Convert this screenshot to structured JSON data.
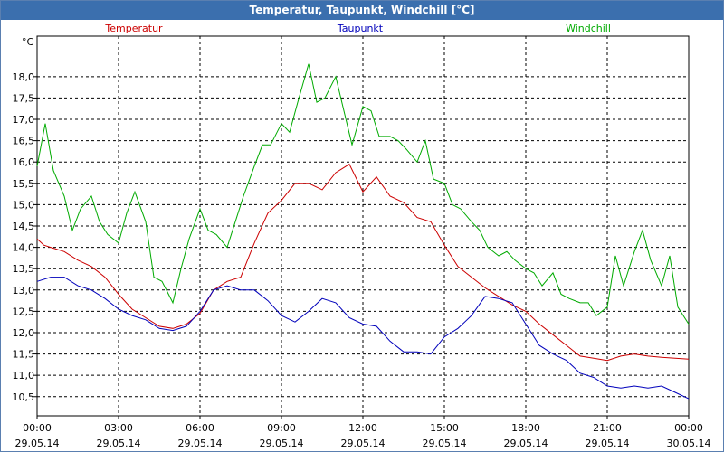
{
  "window_title": "Temperatur, Taupunkt, Windchill [°C]",
  "chart_data": {
    "type": "line",
    "title": "Temperatur, Taupunkt, Windchill [°C]",
    "ylabel": "°C",
    "ylim": [
      10.05,
      18.95
    ],
    "xlim": [
      0,
      24
    ],
    "grid": true,
    "legend_placement": "top",
    "y_ticks": [
      "18,0",
      "17,5",
      "17,0",
      "16,5",
      "16,0",
      "15,5",
      "15,0",
      "14,5",
      "14,0",
      "13,5",
      "13,0",
      "12,5",
      "12,0",
      "11,5",
      "11,0",
      "10,5"
    ],
    "y_tick_values": [
      18.0,
      17.5,
      17.0,
      16.5,
      16.0,
      15.5,
      15.0,
      14.5,
      14.0,
      13.5,
      13.0,
      12.5,
      12.0,
      11.5,
      11.0,
      10.5
    ],
    "x_ticks": [
      {
        "time": "00:00",
        "date": "29.05.14"
      },
      {
        "time": "03:00",
        "date": "29.05.14"
      },
      {
        "time": "06:00",
        "date": "29.05.14"
      },
      {
        "time": "09:00",
        "date": "29.05.14"
      },
      {
        "time": "12:00",
        "date": "29.05.14"
      },
      {
        "time": "15:00",
        "date": "29.05.14"
      },
      {
        "time": "18:00",
        "date": "29.05.14"
      },
      {
        "time": "21:00",
        "date": "29.05.14"
      },
      {
        "time": "00:00",
        "date": "30.05.14"
      }
    ],
    "x_tick_hours": [
      0,
      3,
      6,
      9,
      12,
      15,
      18,
      21,
      24
    ],
    "series": [
      {
        "name": "Temperatur",
        "color": "#cc0000",
        "x": [
          0,
          0.25,
          0.5,
          1,
          1.5,
          2,
          2.5,
          3,
          3.5,
          4,
          4.5,
          5,
          5.5,
          6,
          6.5,
          7,
          7.5,
          8,
          8.5,
          9,
          9.5,
          10,
          10.5,
          11,
          11.5,
          12,
          12.5,
          13,
          13.5,
          14,
          14.5,
          15,
          15.5,
          16,
          16.5,
          17,
          17.5,
          18,
          18.5,
          19,
          19.5,
          20,
          20.5,
          21,
          21.5,
          22,
          22.5,
          23,
          23.5,
          24
        ],
        "values": [
          14.2,
          14.05,
          14.0,
          13.9,
          13.7,
          13.55,
          13.3,
          12.9,
          12.55,
          12.35,
          12.15,
          12.1,
          12.2,
          12.45,
          13.0,
          13.2,
          13.3,
          14.1,
          14.8,
          15.1,
          15.5,
          15.5,
          15.35,
          15.75,
          15.95,
          15.3,
          15.65,
          15.2,
          15.05,
          14.7,
          14.6,
          14.05,
          13.55,
          13.3,
          13.05,
          12.85,
          12.65,
          12.5,
          12.2,
          11.95,
          11.7,
          11.45,
          11.4,
          11.35,
          11.45,
          11.5,
          11.45,
          11.42,
          11.4,
          11.38
        ]
      },
      {
        "name": "Taupunkt",
        "color": "#0000bb",
        "x": [
          0,
          0.5,
          1,
          1.5,
          2,
          2.5,
          3,
          3.5,
          4,
          4.5,
          5,
          5.5,
          6,
          6.5,
          7,
          7.5,
          8,
          8.5,
          9,
          9.5,
          10,
          10.5,
          11,
          11.5,
          12,
          12.5,
          13,
          13.5,
          14,
          14.5,
          15,
          15.5,
          16,
          16.5,
          17,
          17.5,
          18,
          18.5,
          19,
          19.5,
          20,
          20.5,
          21,
          21.5,
          22,
          22.5,
          23,
          23.5,
          24
        ],
        "values": [
          13.2,
          13.3,
          13.3,
          13.1,
          13.0,
          12.8,
          12.55,
          12.4,
          12.3,
          12.1,
          12.05,
          12.15,
          12.5,
          13.0,
          13.1,
          13.0,
          13.0,
          12.75,
          12.4,
          12.25,
          12.5,
          12.8,
          12.7,
          12.35,
          12.2,
          12.15,
          11.8,
          11.55,
          11.55,
          11.5,
          11.9,
          12.1,
          12.4,
          12.85,
          12.8,
          12.7,
          12.2,
          11.7,
          11.5,
          11.35,
          11.05,
          10.95,
          10.75,
          10.7,
          10.75,
          10.7,
          10.75,
          10.6,
          10.45
        ]
      },
      {
        "name": "Windchill",
        "color": "#00aa00",
        "x": [
          0,
          0.3,
          0.6,
          1,
          1.3,
          1.6,
          2,
          2.3,
          2.6,
          3,
          3.3,
          3.6,
          4,
          4.3,
          4.6,
          5,
          5.3,
          5.6,
          6,
          6.3,
          6.6,
          7,
          7.3,
          7.6,
          8,
          8.3,
          8.6,
          9,
          9.3,
          9.6,
          10,
          10.3,
          10.6,
          11,
          11.3,
          11.6,
          12,
          12.3,
          12.6,
          13,
          13.3,
          13.6,
          14,
          14.3,
          14.6,
          15,
          15.3,
          15.6,
          16,
          16.3,
          16.6,
          17,
          17.3,
          17.6,
          18,
          18.3,
          18.6,
          19,
          19.3,
          19.6,
          20,
          20.3,
          20.6,
          21,
          21.3,
          21.6,
          22,
          22.3,
          22.6,
          23,
          23.3,
          23.6,
          24
        ],
        "values": [
          15.9,
          16.9,
          15.8,
          15.2,
          14.4,
          14.9,
          15.2,
          14.6,
          14.3,
          14.1,
          14.8,
          15.3,
          14.6,
          13.3,
          13.2,
          12.7,
          13.5,
          14.2,
          14.9,
          14.4,
          14.3,
          14.0,
          14.6,
          15.2,
          15.9,
          16.4,
          16.4,
          16.9,
          16.7,
          17.4,
          18.3,
          17.4,
          17.5,
          18.0,
          17.2,
          16.4,
          17.3,
          17.2,
          16.6,
          16.6,
          16.5,
          16.3,
          16.0,
          16.5,
          15.6,
          15.5,
          15.0,
          14.9,
          14.6,
          14.4,
          14.0,
          13.8,
          13.9,
          13.7,
          13.5,
          13.4,
          13.1,
          13.4,
          12.9,
          12.8,
          12.7,
          12.7,
          12.4,
          12.6,
          13.8,
          13.1,
          13.9,
          14.4,
          13.7,
          13.1,
          13.8,
          12.6,
          12.2
        ]
      }
    ]
  }
}
